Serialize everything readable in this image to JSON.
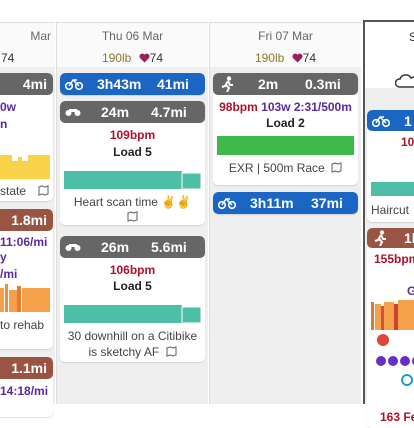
{
  "columns": [
    {
      "date": "Mar",
      "hr": "74",
      "cards": [
        {
          "stats": [
            "4mi"
          ],
          "lines": [
            "0w",
            "n"
          ],
          "note": "state"
        },
        {
          "stats": [
            "1.8mi"
          ],
          "lines": [
            "11:06/mi",
            "y",
            "/mi"
          ],
          "note": "to rehab"
        },
        {
          "stats": [
            "1.1mi"
          ],
          "lines": [
            "14:18/mi"
          ]
        }
      ]
    },
    {
      "date": "Thu 06 Mar",
      "weight": "190lb",
      "hr": "74",
      "cards": [
        {
          "stats": [
            "3h43m",
            "41mi"
          ]
        },
        {
          "stats": [
            "24m",
            "4.7mi"
          ],
          "lines": [
            "109bpm",
            "Load 5"
          ],
          "note": "Heart scan time ✌️✌️"
        },
        {
          "stats": [
            "26m",
            "5.6mi"
          ],
          "lines": [
            "106bpm",
            "Load 5"
          ],
          "note": [
            "30 downhill on a Citibike",
            "is sketchy AF"
          ]
        }
      ]
    },
    {
      "date": "Fri 07 Mar",
      "weight": "190lb",
      "hr": "74",
      "cards": [
        {
          "stats": [
            "2m",
            "0.3mi"
          ],
          "lines": [
            "98bpm",
            "103w",
            "2:31/500m",
            "Load 2"
          ],
          "note": "EXR | 500m Race"
        },
        {
          "stats": [
            "3h11m",
            "37mi"
          ]
        }
      ]
    },
    {
      "date": "S",
      "cards": [
        {
          "stats": [
            "1"
          ],
          "lines": [
            "10"
          ],
          "note": "Haircut"
        },
        {
          "stats": [
            "1h"
          ],
          "lines": [
            "155bpm",
            "GA",
            "163 Fe"
          ]
        }
      ]
    }
  ]
}
